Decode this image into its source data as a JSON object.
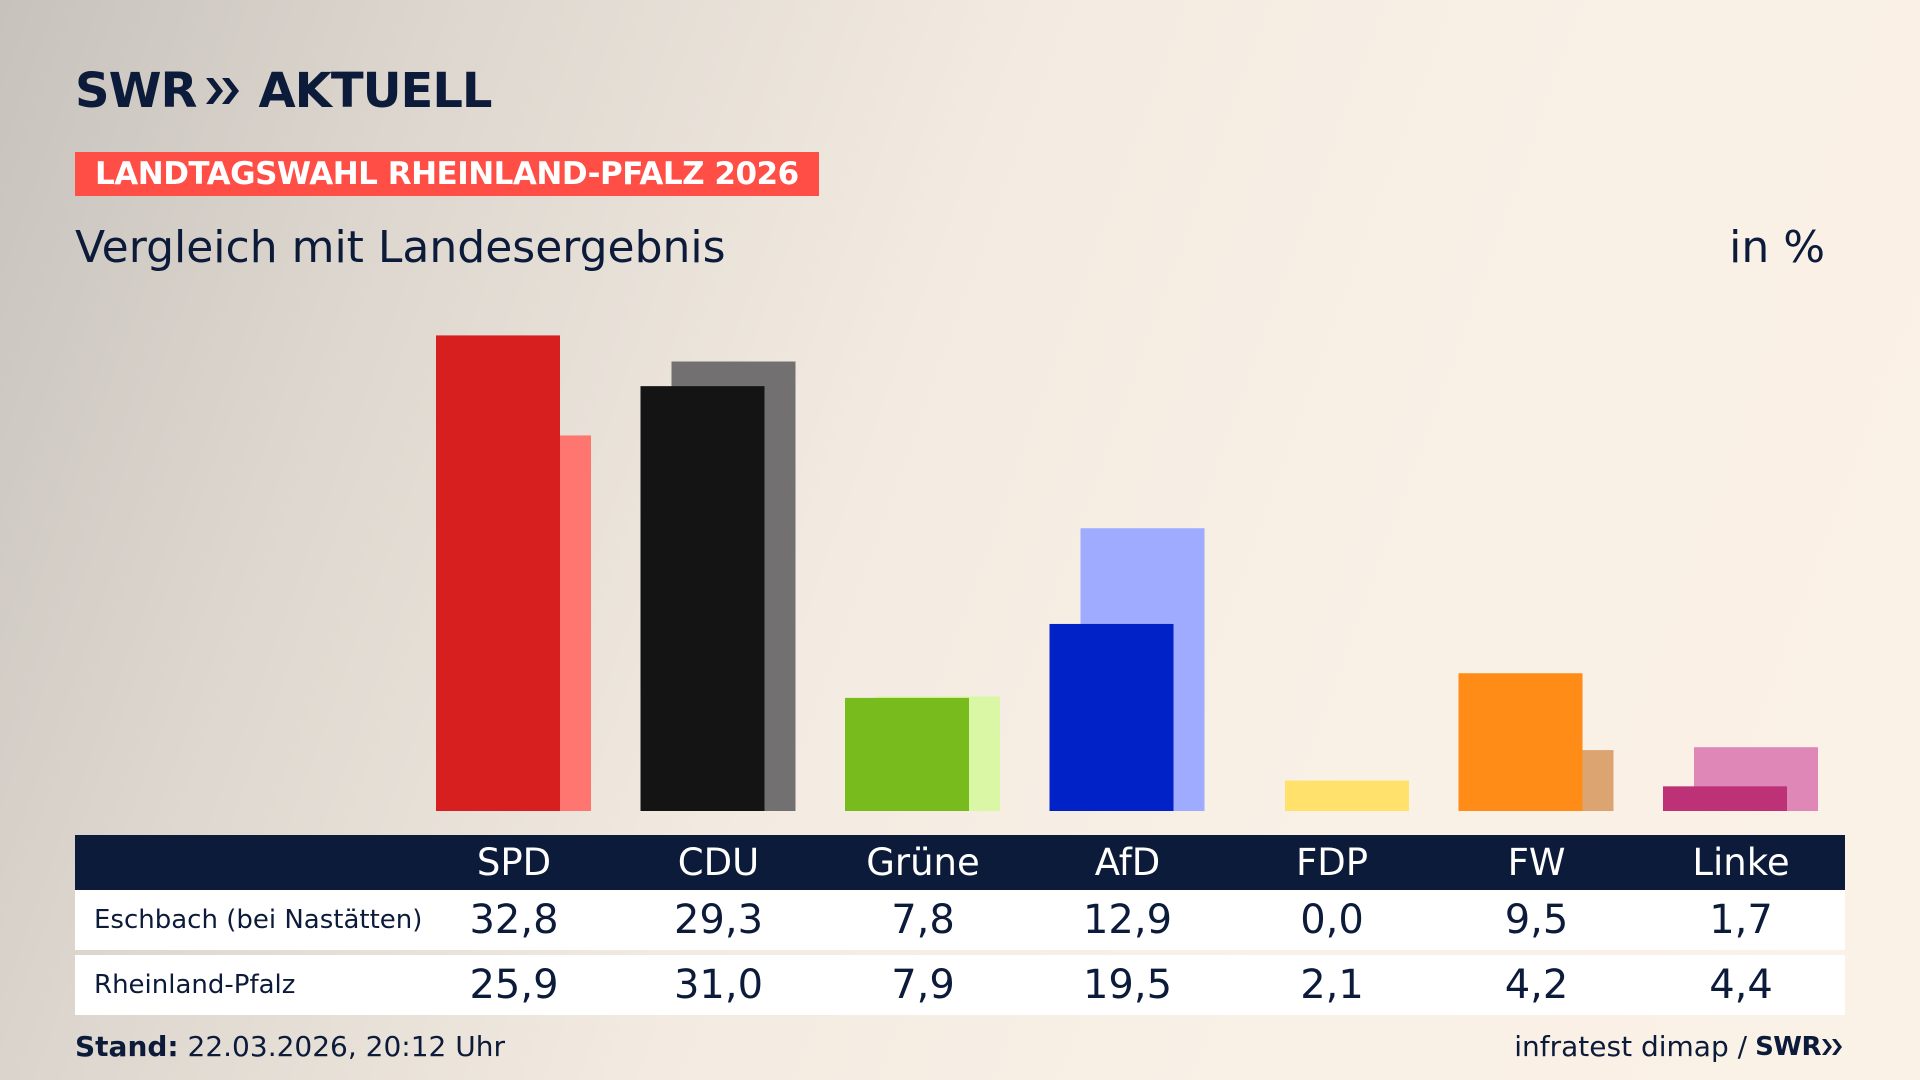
{
  "brand": {
    "swr": "SWR",
    "aktuell": "AKTUELL"
  },
  "tag": "LANDTAGSWAHL RHEINLAND-PFALZ 2026",
  "subtitle": "Vergleich mit Landesergebnis",
  "unit": "in %",
  "colors": {
    "navy": "#0c1b3a",
    "tag": "#ff4e45"
  },
  "chart_data": {
    "type": "bar",
    "categories": [
      "SPD",
      "CDU",
      "Grüne",
      "AfD",
      "FDP",
      "FW",
      "Linke"
    ],
    "series": [
      {
        "name": "Eschbach (bei Nastätten)",
        "values": [
          32.8,
          29.3,
          7.8,
          12.9,
          0.0,
          9.5,
          1.7
        ],
        "display": [
          "32,8",
          "29,3",
          "7,8",
          "12,9",
          "0,0",
          "9,5",
          "1,7"
        ],
        "colors": [
          "#d81f1f",
          "#141414",
          "#78bb1d",
          "#0022c6",
          "#ffe16b",
          "#ff8c16",
          "#bd3177"
        ]
      },
      {
        "name": "Rheinland-Pfalz",
        "values": [
          25.9,
          31.0,
          7.9,
          19.5,
          2.1,
          4.2,
          4.4
        ],
        "display": [
          "25,9",
          "31,0",
          "7,9",
          "19,5",
          "2,1",
          "4,2",
          "4,4"
        ],
        "colors": [
          "#ff7670",
          "#727070",
          "#d9f7a5",
          "#9eabff",
          "#ffe16b",
          "#dba470",
          "#df87b6"
        ]
      }
    ],
    "ylim": [
      0,
      33
    ],
    "title": "",
    "xlabel": "",
    "ylabel": ""
  },
  "footer": {
    "stand_label": "Stand:",
    "stand_value": "22.03.2026, 20:12 Uhr",
    "source": "infratest dimap /",
    "swr": "SWR"
  }
}
